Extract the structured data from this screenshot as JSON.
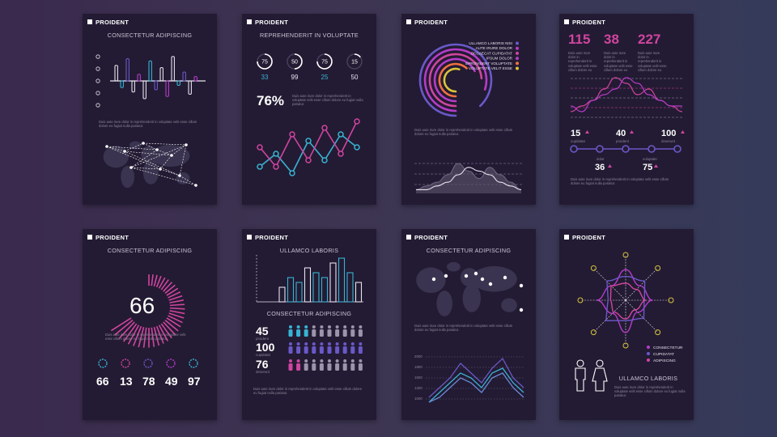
{
  "brand": "PROIDENT",
  "colors": {
    "bg": "#3b3050",
    "card": "#231b33",
    "pink": "#d0459f",
    "magenta": "#b53cc9",
    "purple": "#6a59c8",
    "cyan": "#38b3d3",
    "light": "#e6e2ee",
    "muted": "#8a8499",
    "orange": "#f07040",
    "yellow": "#d9c43a"
  },
  "lorem": "Duis aute irure dolor in reprehenderit in voluptate velit esse cillum dolore eu fugiat nulla pariatur.",
  "cards": {
    "c1": {
      "title": "CONSECTETUR ADIPISCING"
    },
    "c2": {
      "title": "REPREHENDERIT IN VOLUPTATE",
      "big": "76%"
    },
    "c3": {},
    "c4": {
      "stats": [
        {
          "value": "115"
        },
        {
          "value": "38"
        },
        {
          "value": "227"
        }
      ],
      "timeline": [
        {
          "value": "15",
          "label": "cupidatat"
        },
        {
          "value": "40",
          "label": "proident"
        },
        {
          "value": "100",
          "label": "deserunt"
        },
        {
          "value": "36",
          "label": "dolor"
        },
        {
          "value": "75",
          "label": "voluptate"
        }
      ]
    },
    "c5": {
      "title": "CONSECTETUR ADIPISCING",
      "big": "66",
      "stats": [
        "66",
        "13",
        "78",
        "49",
        "97"
      ]
    },
    "c6": {
      "title": "ULLAMCO LABORIS",
      "subtitle": "CONSECTETUR ADIPISCING",
      "people": [
        {
          "value": "45",
          "label": "proident"
        },
        {
          "value": "100",
          "label": "cupidatat"
        },
        {
          "value": "76",
          "label": "deserunt"
        }
      ]
    },
    "c7": {
      "title": "CONSECTETUR ADIPISCING",
      "ylabels": [
        "2000",
        "1800",
        "1500",
        "1200",
        "1000"
      ]
    },
    "c8": {
      "title": "ULLAMCO LABORIS"
    }
  },
  "chart_data": [
    {
      "type": "bar",
      "name": "c1-diverging",
      "values": [
        35,
        -15,
        50,
        -25,
        15,
        -40,
        45,
        -20,
        30,
        -35,
        55,
        -10,
        20,
        -30,
        10
      ],
      "timeline_points": 5
    },
    {
      "type": "pie",
      "name": "c2-donuts",
      "values": [
        75,
        50,
        75,
        15
      ],
      "labels": [
        "33",
        "99",
        "25",
        "50"
      ]
    },
    {
      "type": "line",
      "name": "c2-lines",
      "series": [
        {
          "values": [
            2,
            4,
            1,
            6,
            3,
            7,
            5
          ]
        },
        {
          "values": [
            5,
            2,
            7,
            3,
            8,
            4,
            9
          ]
        }
      ]
    },
    {
      "type": "pie",
      "name": "c3-arcs",
      "legend": [
        "ULLAMCO LABORIS NISI",
        "AUTE IRURE DOLOR",
        "OCCAECAT CUPIDATAT",
        "IPSUM DOLOR",
        "EPROVIDENT VOLUPTATE",
        "VOLUPTATE VELIT ESSE"
      ],
      "values": [
        88,
        80,
        74,
        68,
        62,
        55
      ]
    },
    {
      "type": "area",
      "name": "c3-area",
      "series": [
        {
          "values": [
            1,
            2,
            3,
            5,
            8,
            6,
            4,
            7,
            5,
            3,
            1
          ]
        },
        {
          "values": [
            1,
            1,
            2,
            3,
            5,
            7,
            6,
            5,
            3,
            2,
            1
          ]
        }
      ]
    },
    {
      "type": "line",
      "name": "c4-waves",
      "series": [
        {
          "values": [
            2,
            3,
            4,
            6,
            8,
            7,
            5,
            6,
            4,
            3,
            2
          ]
        },
        {
          "values": [
            3,
            2,
            4,
            5,
            6,
            8,
            7,
            5,
            4,
            3,
            3
          ]
        }
      ]
    },
    {
      "type": "pie",
      "name": "c5-radial",
      "value": 66
    },
    {
      "type": "pie",
      "name": "c5-donuts",
      "values": [
        66,
        13,
        78,
        49,
        97
      ]
    },
    {
      "type": "bar",
      "name": "c6-bars",
      "values": [
        3,
        5,
        4,
        7,
        6,
        5,
        8,
        9,
        6,
        4
      ]
    },
    {
      "type": "table",
      "name": "c6-people",
      "values": [
        45,
        100,
        76
      ],
      "icons_filled": [
        3,
        9,
        2
      ]
    },
    {
      "type": "line",
      "name": "c7-mountain",
      "series": [
        {
          "values": [
            1,
            3,
            5,
            8,
            6,
            4,
            7,
            9,
            5,
            3
          ]
        },
        {
          "values": [
            0,
            2,
            4,
            6,
            5,
            3,
            6,
            7,
            4,
            2
          ]
        },
        {
          "values": [
            0,
            1,
            3,
            5,
            4,
            2,
            5,
            6,
            3,
            1
          ]
        }
      ]
    },
    {
      "type": "scatter",
      "name": "c8-radar",
      "legend": [
        "CONSECTETUR",
        "CUPIDATAT",
        "ADIPISCING"
      ],
      "series": [
        {
          "values": [
            0.9,
            0.6,
            0.8,
            0.5,
            0.95,
            0.55,
            0.85,
            0.6
          ]
        },
        {
          "values": [
            0.7,
            0.8,
            0.55,
            0.75,
            0.6,
            0.85,
            0.5,
            0.8
          ]
        },
        {
          "values": [
            0.5,
            0.45,
            0.6,
            0.4,
            0.55,
            0.5,
            0.45,
            0.6
          ]
        }
      ]
    }
  ]
}
